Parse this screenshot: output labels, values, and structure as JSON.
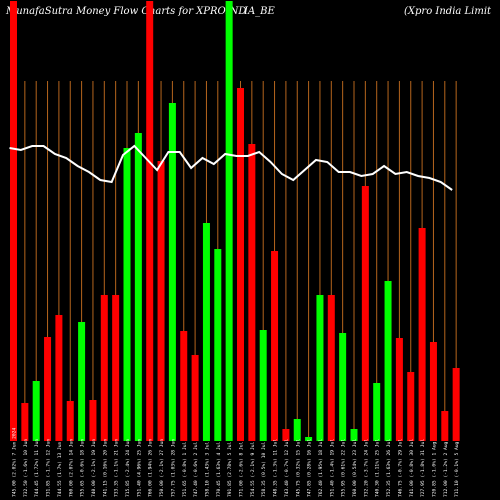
{
  "header": {
    "left": "MunafaSutra  Money Flow  Charts for XPROIND",
    "middle": "IA_BE",
    "right": "(Xpro  India  Limit"
  },
  "colors": {
    "background": "#000000",
    "grid": "#b5651d",
    "up": "#00ff00",
    "down": "#ff0000",
    "line": "#ffffff",
    "text": "#ffffff"
  },
  "chart_data": {
    "type": "bar",
    "title": "MunafaSutra Money Flow Charts for XPROINDIA_BE",
    "ylim": [
      0,
      440
    ],
    "grid": "vertical",
    "bars": [
      {
        "value": 440,
        "color": "down",
        "label": "745.00 (2.02%) 7 Jun 2024"
      },
      {
        "value": 38,
        "color": "down",
        "label": "732.50 (-1.6%) 10 Jun"
      },
      {
        "value": 60,
        "color": "up",
        "label": "744.45 (1.72%) 11 Jun"
      },
      {
        "value": 104,
        "color": "down",
        "label": "731.85 (-1.7%) 12 Jun"
      },
      {
        "value": 126,
        "color": "down",
        "label": "744.55 (1.7%) 13 Jun"
      },
      {
        "value": 40,
        "color": "down",
        "label": "760.00 (2.07%) 14 Jun"
      },
      {
        "value": 119,
        "color": "up",
        "label": "755.65 (-0.6%) 18 Jun"
      },
      {
        "value": 41,
        "color": "down",
        "label": "740.00 (-2.1%) 19 Jun"
      },
      {
        "value": 146,
        "color": "down",
        "label": "741.15 (0.16%) 20 Jun"
      },
      {
        "value": 146,
        "color": "down",
        "label": "733.35 (-1.1%) 21 Jun"
      },
      {
        "value": 293,
        "color": "up",
        "label": "715.85 (-2.4%) 24 Jun"
      },
      {
        "value": 308,
        "color": "up",
        "label": "751.40 (4.96%) 25 Jun"
      },
      {
        "value": 440,
        "color": "down",
        "label": "766.00 (1.94%) 26 Jun"
      },
      {
        "value": 280,
        "color": "down",
        "label": "750.00 (-2.1%) 27 Jun"
      },
      {
        "value": 338,
        "color": "up",
        "label": "757.75 (1.03%) 28 Jun"
      },
      {
        "value": 110,
        "color": "down",
        "label": "751.65 (-0.8%) 1 Jul"
      },
      {
        "value": 86,
        "color": "down",
        "label": "747.40 (-0.6%) 2 Jul"
      },
      {
        "value": 218,
        "color": "up",
        "label": "758.10 (1.43%) 3 Jul"
      },
      {
        "value": 192,
        "color": "up",
        "label": "770.45 (1.63%) 4 Jul"
      },
      {
        "value": 440,
        "color": "up",
        "label": "791.85 (2.78%) 5 Jul"
      },
      {
        "value": 353,
        "color": "down",
        "label": "771.00 (-2.6%) 8 Jul"
      },
      {
        "value": 297,
        "color": "down",
        "label": "754.55 (-2.1%) 9 Jul"
      },
      {
        "value": 111,
        "color": "up",
        "label": "758.35 (0.5%) 10 Jul"
      },
      {
        "value": 190,
        "color": "down",
        "label": "748.35 (-1.3%) 11 Jul"
      },
      {
        "value": 12,
        "color": "down",
        "label": "743.40 (-0.7%) 12 Jul"
      },
      {
        "value": 22,
        "color": "up",
        "label": "745.75 (0.32%) 15 Jul"
      },
      {
        "value": 4,
        "color": "up",
        "label": "747.85 (0.28%) 16 Jul"
      },
      {
        "value": 146,
        "color": "up",
        "label": "762.40 (1.95%) 18 Jul"
      },
      {
        "value": 146,
        "color": "down",
        "label": "751.40 (-1.4%) 19 Jul"
      },
      {
        "value": 108,
        "color": "up",
        "label": "755.95 (0.61%) 22 Jul"
      },
      {
        "value": 12,
        "color": "up",
        "label": "760.00 (0.54%) 23 Jul"
      },
      {
        "value": 255,
        "color": "down",
        "label": "732.20 (-3.7%) 24 Jul"
      },
      {
        "value": 58,
        "color": "up",
        "label": "740.30 (1.11%) 25 Jul"
      },
      {
        "value": 160,
        "color": "up",
        "label": "752.35 (1.63%) 26 Jul"
      },
      {
        "value": 103,
        "color": "down",
        "label": "746.75 (-0.7%) 29 Jul"
      },
      {
        "value": 69,
        "color": "down",
        "label": "741.00 (-0.8%) 30 Jul"
      },
      {
        "value": 213,
        "color": "down",
        "label": "727.95 (-1.8%) 31 Jul"
      },
      {
        "value": 99,
        "color": "down",
        "label": "720.85 (-1.0%) 1 Aug"
      },
      {
        "value": 30,
        "color": "down",
        "label": "712.00 (-1.2%) 2 Aug"
      },
      {
        "value": 73,
        "color": "down",
        "label": "711.10 (-0.1%) 5 Aug"
      }
    ],
    "line": [
      148,
      150,
      146,
      146,
      154,
      158,
      166,
      172,
      180,
      182,
      155,
      146,
      158,
      170,
      152,
      152,
      168,
      158,
      164,
      154,
      156,
      156,
      152,
      162,
      174,
      180,
      170,
      160,
      162,
      172,
      172,
      176,
      174,
      166,
      174,
      172,
      176,
      178,
      182,
      190
    ]
  }
}
